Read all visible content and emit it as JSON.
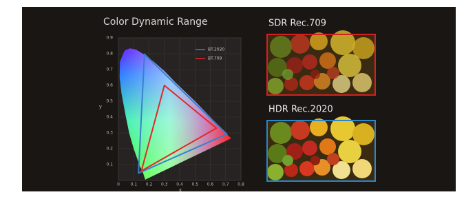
{
  "chart_data": {
    "type": "gamut",
    "title": "Color Dynamic Range",
    "x_label": "x",
    "y_label": "y",
    "xlim": [
      0,
      0.8
    ],
    "ylim": [
      0,
      0.9
    ],
    "xticks": [
      0,
      0.1,
      0.2,
      0.3,
      0.4,
      0.5,
      0.6,
      0.7,
      0.8
    ],
    "yticks": [
      0.1,
      0.2,
      0.3,
      0.4,
      0.5,
      0.6,
      0.7,
      0.8,
      0.9
    ],
    "grid": true,
    "series": [
      {
        "name": "BT.2020",
        "color": "#3a7fd0",
        "x": [
          0.708,
          0.17,
          0.131
        ],
        "values": [
          0.292,
          0.797,
          0.046
        ]
      },
      {
        "name": "BT.709",
        "color": "#e02828",
        "x": [
          0.64,
          0.3,
          0.15
        ],
        "values": [
          0.33,
          0.6,
          0.06
        ]
      }
    ]
  },
  "panels": [
    {
      "label": "SDR Rec.709",
      "border": "#d42020"
    },
    {
      "label": "HDR Rec.2020",
      "border": "#2c86c8"
    }
  ]
}
